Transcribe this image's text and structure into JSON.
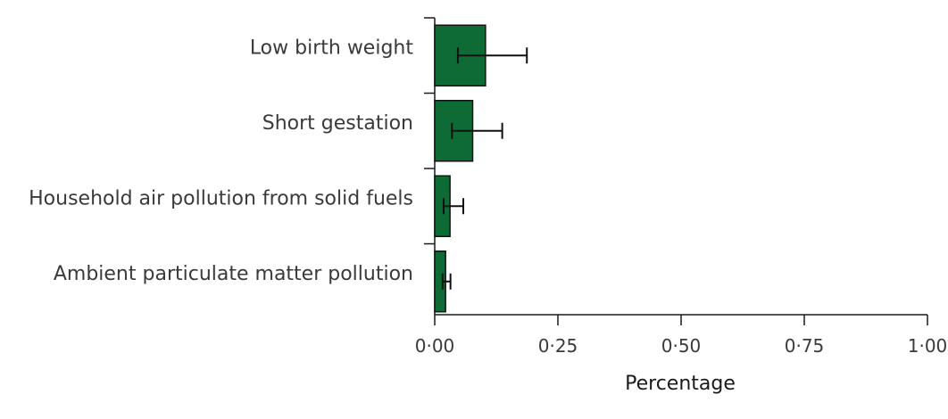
{
  "chart_data": {
    "type": "bar",
    "orientation": "horizontal",
    "title": "",
    "xlabel": "Percentage",
    "ylabel": "",
    "xlim": [
      0,
      1
    ],
    "x_ticks": [
      0,
      0.25,
      0.5,
      0.75,
      1
    ],
    "x_tick_labels": [
      "0·00",
      "0·25",
      "0·50",
      "0·75",
      "1·00"
    ],
    "categories": [
      "Low birth weight",
      "Short gestation",
      "Household air pollution from solid fuels",
      "Ambient particulate matter pollution"
    ],
    "values": [
      0.103,
      0.077,
      0.031,
      0.022
    ],
    "error_low": [
      0.047,
      0.035,
      0.018,
      0.016
    ],
    "error_high": [
      0.187,
      0.137,
      0.058,
      0.032
    ],
    "bar_color": "#0e6b35",
    "grid": false
  }
}
